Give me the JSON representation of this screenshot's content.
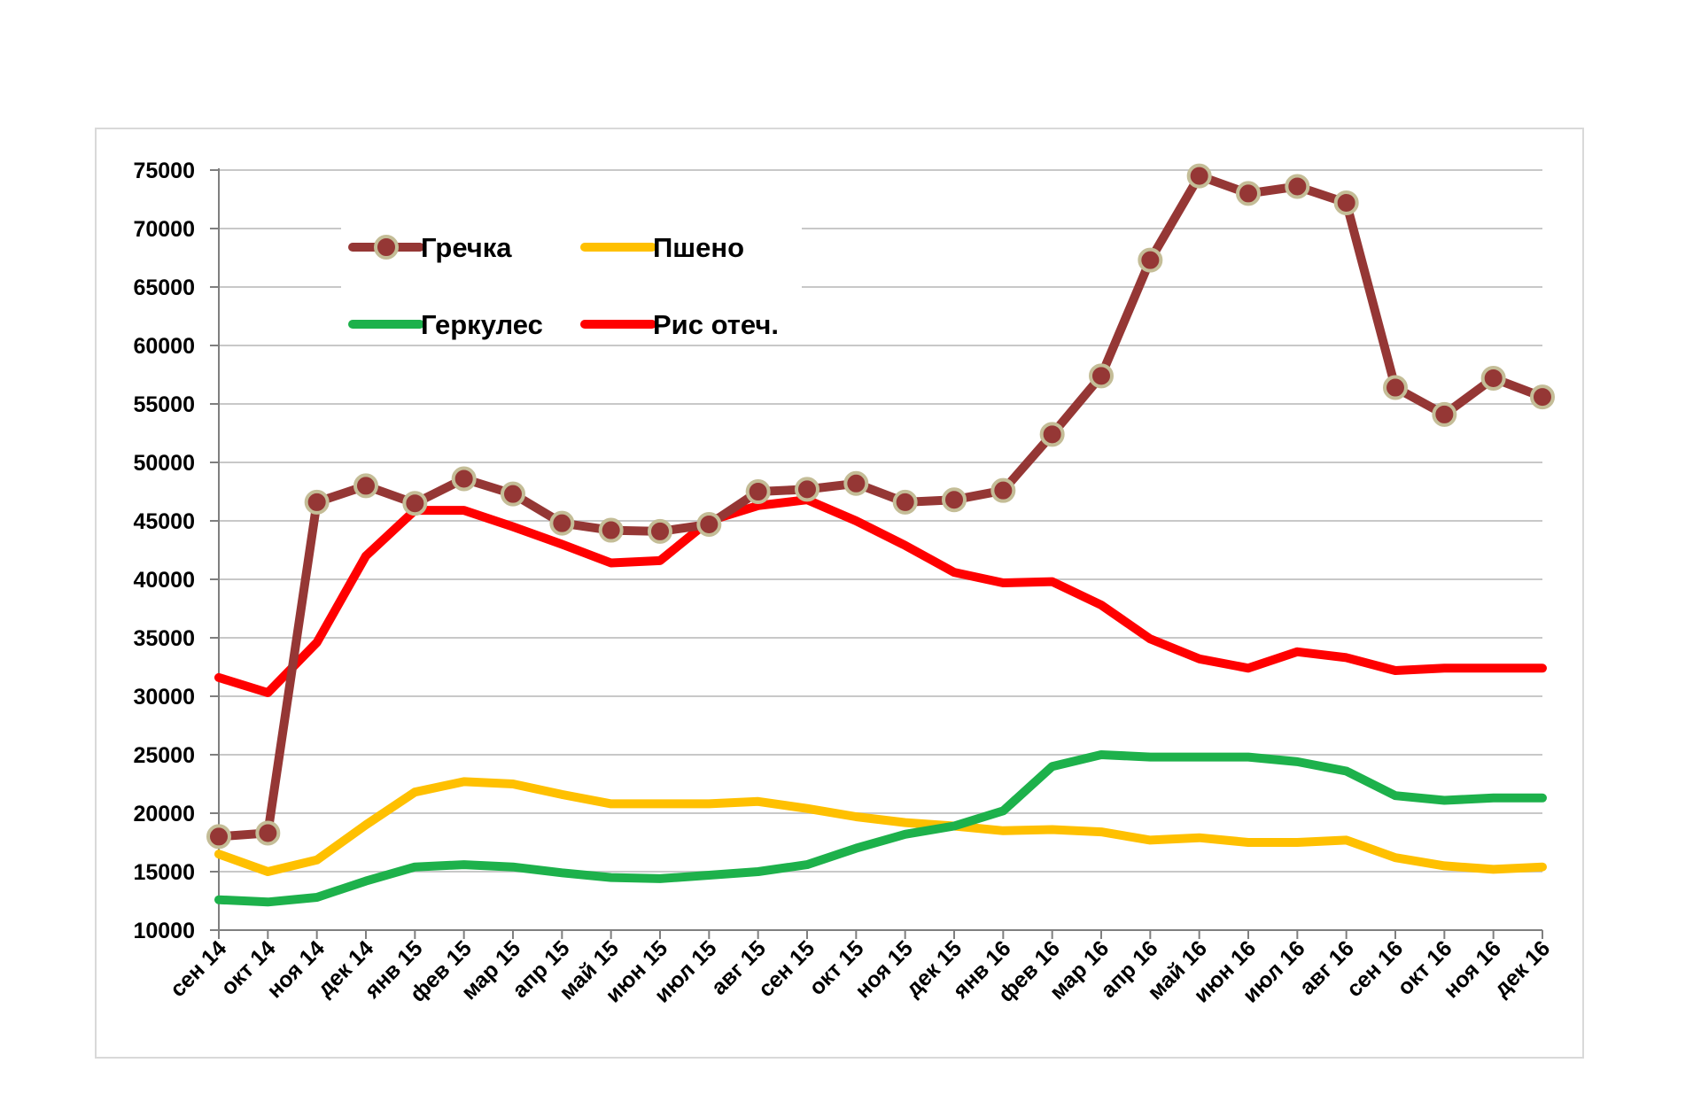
{
  "chart_data": {
    "type": "line",
    "categories": [
      "сен 14",
      "окт 14",
      "ноя 14",
      "дек 14",
      "янв 15",
      "фев 15",
      "мар 15",
      "апр 15",
      "май 15",
      "июн 15",
      "июл 15",
      "авг 15",
      "сен 15",
      "окт 15",
      "ноя 15",
      "дек 15",
      "янв 16",
      "фев 16",
      "мар 16",
      "апр 16",
      "май 16",
      "июн 16",
      "июл 16",
      "авг 16",
      "сен 16",
      "окт 16",
      "ноя 16",
      "дек 16"
    ],
    "ylim": [
      10000,
      75000
    ],
    "yticks": [
      "75000",
      "70000",
      "65000",
      "60000",
      "55000",
      "50000",
      "45000",
      "40000",
      "35000",
      "30000",
      "25000",
      "20000",
      "15000",
      "10000"
    ],
    "grid": "horizontal",
    "legend_position": "top-left",
    "series": [
      {
        "name": "Гречка",
        "color": "#953735",
        "marker": true,
        "values": [
          18000,
          18300,
          46600,
          48000,
          46500,
          48600,
          47300,
          44800,
          44200,
          44100,
          44700,
          47500,
          47700,
          48200,
          46600,
          46800,
          47600,
          52400,
          57400,
          67300,
          74500,
          73000,
          73600,
          72200,
          56400,
          54100,
          57200,
          55600
        ]
      },
      {
        "name": "Пшено",
        "color": "#ffc000",
        "marker": false,
        "values": [
          16500,
          15000,
          16000,
          19000,
          21800,
          22700,
          22500,
          21600,
          20800,
          20800,
          20800,
          21000,
          20400,
          19700,
          19200,
          18900,
          18500,
          18600,
          18400,
          17700,
          17900,
          17500,
          17500,
          17700,
          16200,
          15500,
          15200,
          15400
        ]
      },
      {
        "name": "Геркулес",
        "color": "#1db14b",
        "marker": false,
        "values": [
          12600,
          12400,
          12800,
          14200,
          15400,
          15600,
          15400,
          14900,
          14500,
          14400,
          14700,
          15000,
          15600,
          17000,
          18200,
          18900,
          20200,
          24000,
          25000,
          24800,
          24800,
          24800,
          24400,
          23600,
          21500,
          21100,
          21300,
          21300
        ]
      },
      {
        "name": "Рис отеч.",
        "color": "#ff0000",
        "marker": false,
        "values": [
          31600,
          30300,
          34600,
          42000,
          45900,
          45900,
          44500,
          43000,
          41400,
          41600,
          45000,
          46300,
          46800,
          45000,
          42900,
          40600,
          39700,
          39800,
          37800,
          34900,
          33200,
          32400,
          33800,
          33300,
          32200,
          32400,
          32400,
          32400
        ]
      }
    ]
  }
}
